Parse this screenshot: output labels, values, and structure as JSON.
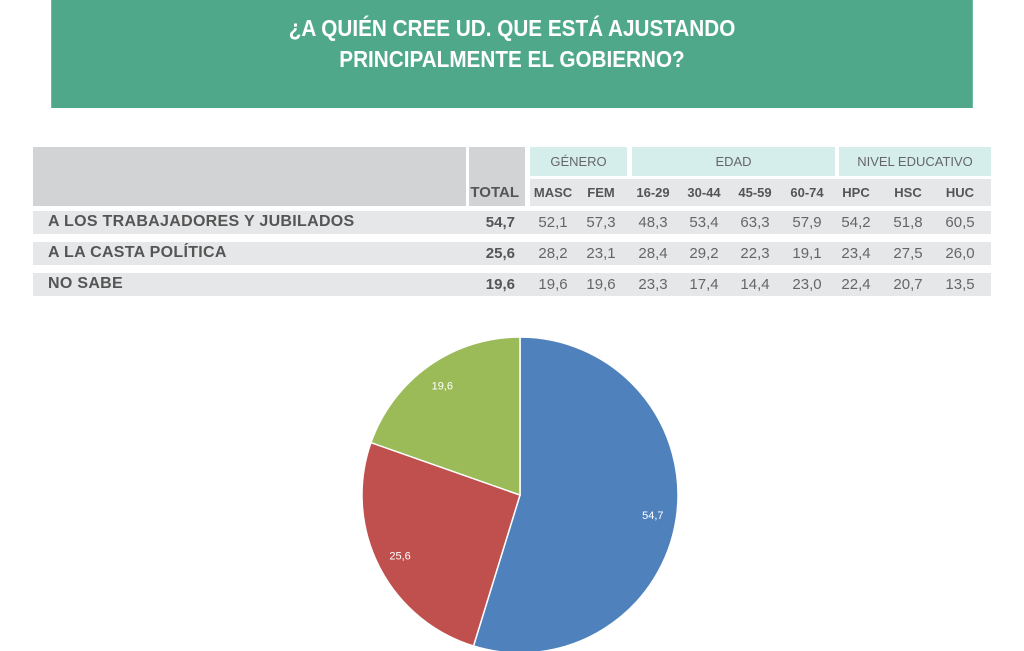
{
  "title_line1": "¿A QUIÉN CREE UD. QUE ESTÁ AJUSTANDO",
  "title_line2": "PRINCIPALMENTE EL GOBIERNO?",
  "table": {
    "total_header": "TOTAL",
    "groups": [
      "GÉNERO",
      "EDAD",
      "NIVEL EDUCATIVO"
    ],
    "subheaders": [
      "MASC",
      "FEM",
      "16-29",
      "30-44",
      "45-59",
      "60-74",
      "HPC",
      "HSC",
      "HUC"
    ],
    "rows": [
      {
        "label": "A LOS TRABAJADORES Y JUBILADOS",
        "total": "54,7",
        "values": [
          "52,1",
          "57,3",
          "48,3",
          "53,4",
          "63,3",
          "57,9",
          "54,2",
          "51,8",
          "60,5"
        ]
      },
      {
        "label": "A LA CASTA POLÍTICA",
        "total": "25,6",
        "values": [
          "28,2",
          "23,1",
          "28,4",
          "29,2",
          "22,3",
          "19,1",
          "23,4",
          "27,5",
          "26,0"
        ]
      },
      {
        "label": "NO SABE",
        "total": "19,6",
        "values": [
          "19,6",
          "19,6",
          "23,3",
          "17,4",
          "14,4",
          "23,0",
          "22,4",
          "20,7",
          "13,5"
        ]
      }
    ]
  },
  "chart_data": {
    "type": "pie",
    "categories": [
      "A LOS TRABAJADORES Y JUBILADOS",
      "A LA CASTA POLÍTICA",
      "NO SABE"
    ],
    "values": [
      54.7,
      25.6,
      19.6
    ],
    "labels": [
      "54,7",
      "25,6",
      "19,6"
    ],
    "colors": [
      "#4f81bd",
      "#c0504d",
      "#9bbb59"
    ]
  }
}
